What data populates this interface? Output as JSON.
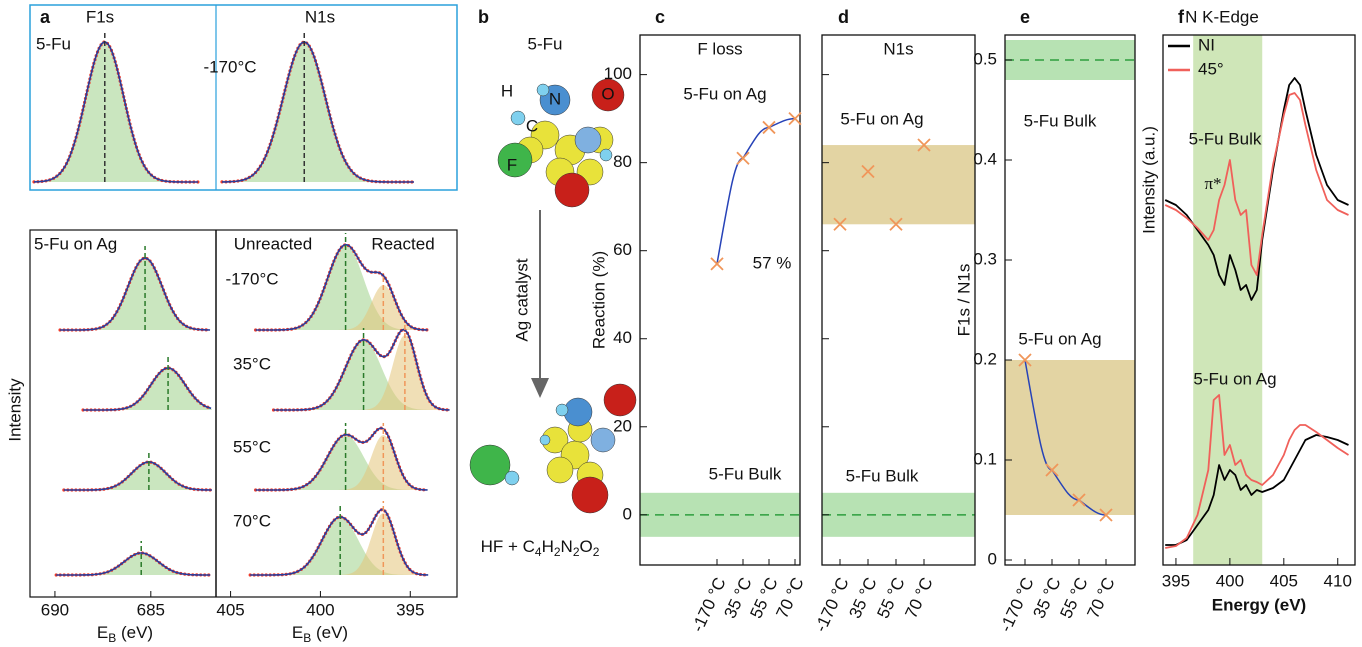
{
  "chart_data": [
    {
      "type": "spectra",
      "panel": "a",
      "titles": [
        "F1s",
        "N1s"
      ],
      "ylabel": "Intensity",
      "xlabel": {
        "main": "E",
        "sub": "B",
        "unit": " (eV)"
      },
      "subplots": [
        {
          "xlim": [
            691.3,
            681.6
          ],
          "xticks": [
            690,
            685
          ]
        },
        {
          "xlim": [
            405.7,
            392.4
          ],
          "xticks": [
            405,
            400,
            395
          ]
        }
      ],
      "reference": {
        "label": "5-Fu",
        "temperature": "-170°C",
        "f1s_peak": 687.4,
        "n1s_peak": 400.9
      },
      "on_ag": {
        "label": "5-Fu on Ag",
        "unreacted_label": "Unreacted",
        "reacted_label": "Reacted",
        "temperatures": [
          "-170°C",
          "35°C",
          "55°C",
          "70°C"
        ],
        "f1s_peaks": [
          685.3,
          684.1,
          685.1,
          685.5
        ],
        "n1s_unreacted_peaks": [
          398.6,
          397.6,
          398.6,
          398.9
        ],
        "n1s_reacted_peaks": [
          396.5,
          395.3,
          396.5,
          396.5
        ]
      }
    },
    {
      "type": "diagram",
      "panel": "b",
      "reactant": "5-Fu",
      "atoms": [
        "H",
        "N",
        "O",
        "C",
        "F"
      ],
      "arrow_label": "Ag catalyst",
      "product": [
        "HF + C",
        "4",
        "H",
        "2",
        "N",
        "2",
        "O",
        "2"
      ]
    },
    {
      "type": "scatter",
      "panel": "c",
      "title": "F loss",
      "ylabel": "Reaction (%)",
      "categories": [
        "-170 °C",
        "35 °C",
        "55 °C",
        "70 °C"
      ],
      "values": [
        57,
        81,
        88,
        90
      ],
      "value_labels": [
        "57 %",
        null,
        null,
        null
      ],
      "color": "#f0965a",
      "fit_line": true,
      "line_color": "#2743b8",
      "sample_label": "5-Fu on Ag",
      "reference_label": "5-Fu Bulk",
      "reference_value": 0,
      "reference_band": [
        -5,
        5
      ],
      "ylim": [
        -11.4,
        109
      ],
      "yticks": [
        0,
        20,
        40,
        60,
        80,
        100
      ]
    },
    {
      "type": "scatter",
      "panel": "d",
      "title": "N1s",
      "categories": [
        "-170 °C",
        "35 °C",
        "55 °C",
        "70 °C"
      ],
      "values": [
        66,
        78,
        66,
        84
      ],
      "color": "#f0965a",
      "fit_line": false,
      "sample_band": [
        66,
        84
      ],
      "sample_label": "5-Fu on Ag",
      "reference_label": "5-Fu Bulk",
      "reference_value": 0,
      "reference_band": [
        -5,
        5
      ],
      "ylim": [
        -11.4,
        109
      ],
      "yticks": [
        0,
        20,
        40,
        60,
        80,
        100
      ],
      "tick_labels": false
    },
    {
      "type": "scatter",
      "panel": "e",
      "ylabel": "F1s / N1s",
      "categories": [
        "-170 °C",
        "35 °C",
        "55 °C",
        "70 °C"
      ],
      "values": [
        0.2,
        0.09,
        0.06,
        0.045
      ],
      "color": "#f0965a",
      "fit_line": true,
      "line_color": "#2743b8",
      "sample_band": [
        0.045,
        0.2
      ],
      "sample_label": "5-Fu on Ag",
      "reference_label": "5-Fu Bulk",
      "reference_value": 0.5,
      "reference_band": [
        0.48,
        0.52
      ],
      "ylim": [
        -0.005,
        0.525
      ],
      "yticks": [
        0,
        0.1,
        0.2,
        0.3,
        0.4,
        0.5
      ]
    },
    {
      "type": "line",
      "panel": "f",
      "title": "N K-Edge",
      "xlabel": "Energy (eV)",
      "ylabel": "Intensity (a.u.)",
      "x": [
        394,
        395,
        396,
        397,
        398,
        398.5,
        399,
        399.5,
        400,
        400.5,
        401,
        401.5,
        402,
        402.5,
        403,
        404,
        405,
        405.5,
        406,
        406.5,
        407,
        408,
        409,
        410,
        411
      ],
      "series": [
        {
          "name": "NI",
          "color": "#000000",
          "values": [
            365,
            360,
            350,
            335,
            320,
            310,
            290,
            280,
            310,
            295,
            275,
            280,
            265,
            275,
            325,
            395,
            455,
            480,
            487,
            480,
            455,
            410,
            380,
            365,
            360
          ]
        },
        {
          "name": "45°",
          "color": "#f0605a",
          "values": [
            360,
            355,
            347,
            337,
            325,
            335,
            365,
            380,
            405,
            365,
            350,
            355,
            300,
            290,
            330,
            400,
            450,
            470,
            472,
            465,
            440,
            395,
            365,
            355,
            350
          ]
        },
        {
          "name": "NI",
          "color": "#000000",
          "values": [
            20,
            20,
            25,
            40,
            55,
            70,
            100,
            85,
            95,
            90,
            75,
            80,
            70,
            75,
            73,
            77,
            85,
            95,
            105,
            115,
            125,
            130,
            128,
            125,
            120
          ]
        },
        {
          "name": "45°",
          "color": "#f0605a",
          "values": [
            17,
            19,
            27,
            50,
            95,
            165,
            170,
            110,
            120,
            100,
            105,
            90,
            85,
            83,
            80,
            90,
            110,
            125,
            135,
            140,
            140,
            133,
            125,
            117,
            110
          ]
        }
      ],
      "annotations": [
        "5-Fu Bulk",
        "5-Fu on Ag",
        "π*"
      ],
      "band": [
        396.6,
        403
      ],
      "band_color": "#cfe6b8",
      "xlim": [
        393.8,
        411.6
      ],
      "xticks": [
        395,
        400,
        405,
        410
      ],
      "ylim": [
        0,
        530
      ]
    }
  ]
}
